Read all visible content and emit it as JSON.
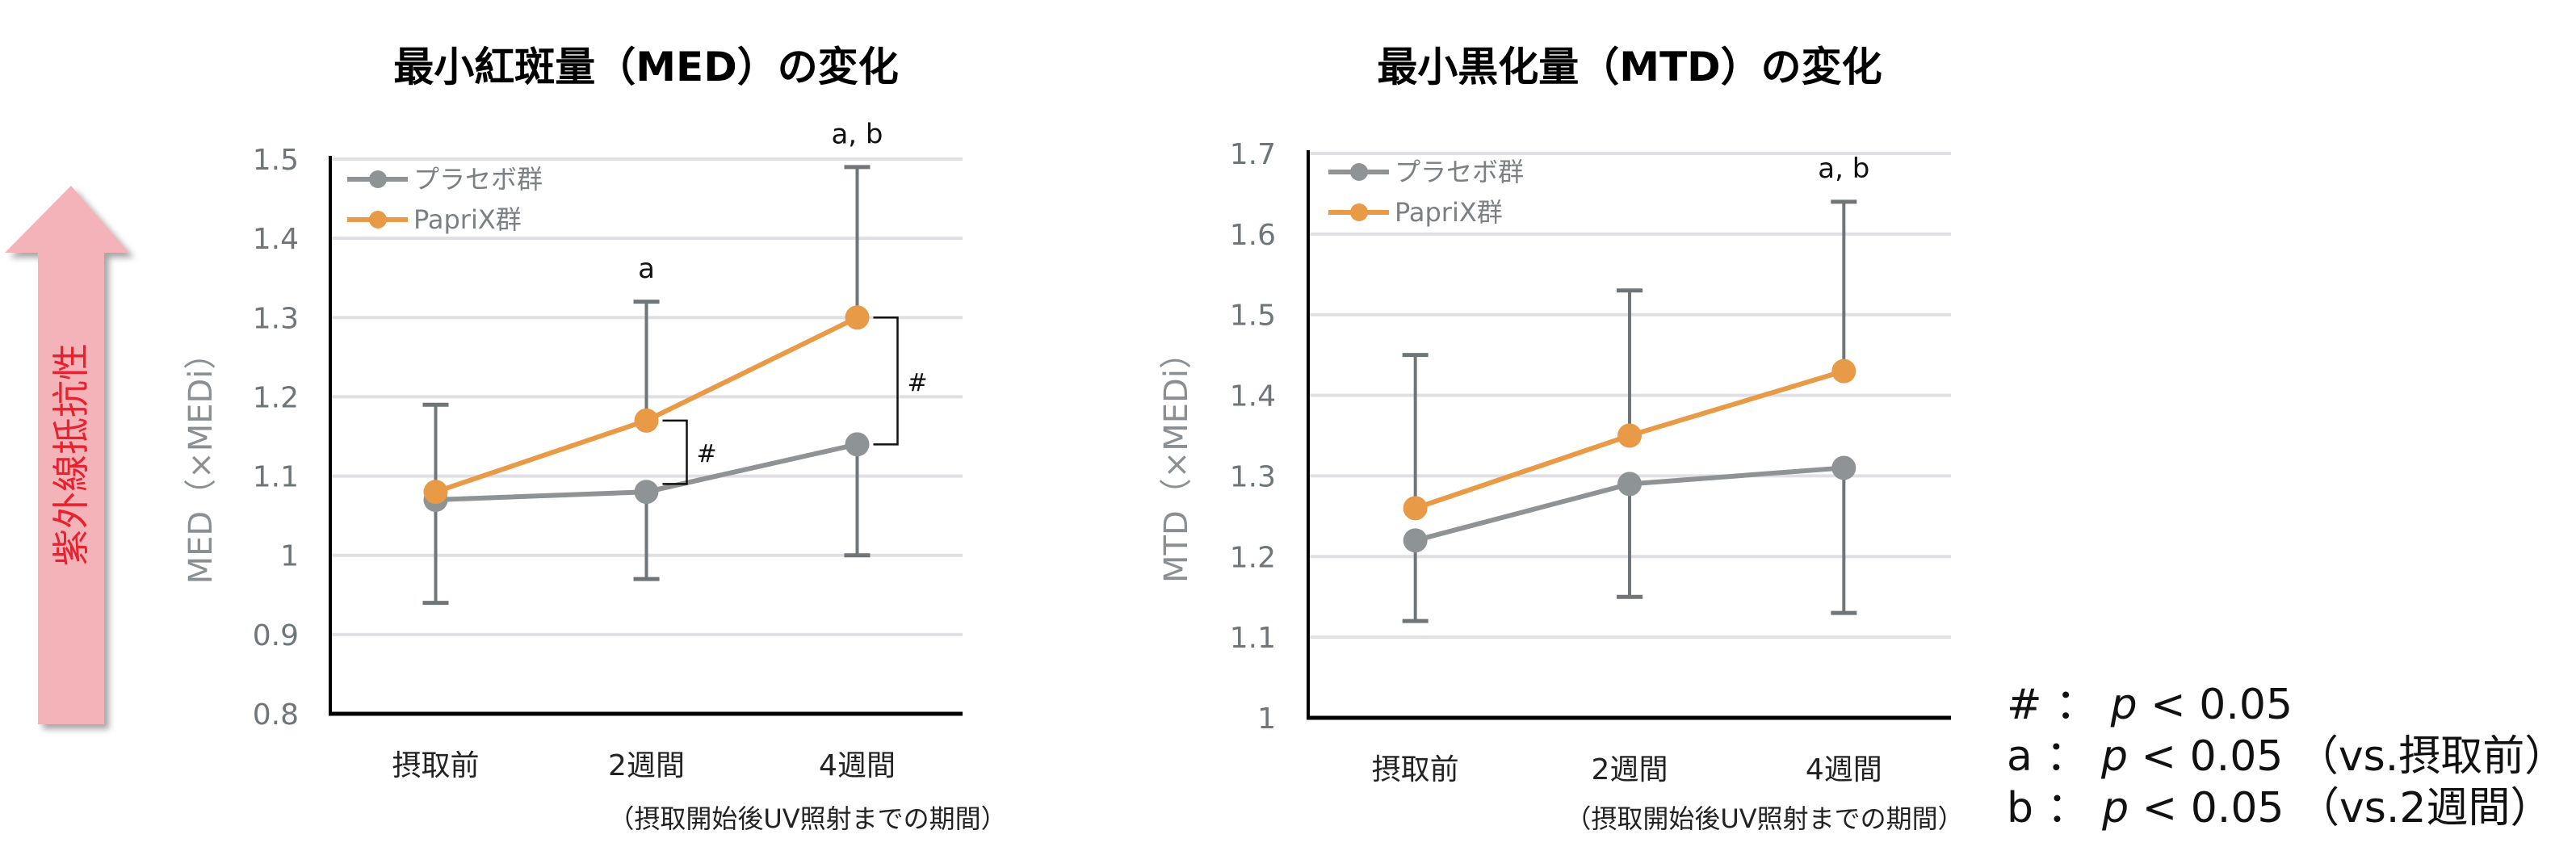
{
  "side_label": "紫外線抵抗性",
  "colors": {
    "placebo": "#8e9396",
    "paprix": "#e99a46",
    "errorbar": "#6f7679",
    "grid": "#e0e0e4",
    "arrow": "#f4b3b9",
    "arrow_text": "#e8212f"
  },
  "chart_data": [
    {
      "type": "line",
      "title": "最小紅斑量（MED）の変化",
      "ylabel": "MED（×MEDi）",
      "xlabel": "（摂取開始後UV照射までの期間）",
      "categories": [
        "摂取前",
        "2週間",
        "4週間"
      ],
      "ylim": [
        0.8,
        1.5
      ],
      "yticks": [
        0.8,
        0.9,
        1,
        1.1,
        1.2,
        1.3,
        1.4,
        1.5
      ],
      "ytick_labels": [
        "0.8",
        "0.9",
        "1",
        "1.1",
        "1.2",
        "1.3",
        "1.4",
        "1.5"
      ],
      "grid": true,
      "legend_position": "top-left",
      "series": [
        {
          "name": "プラセボ群",
          "values": [
            1.07,
            1.08,
            1.14
          ],
          "error_lower": [
            0.94,
            0.97,
            1.0
          ]
        },
        {
          "name": "PapriX群",
          "values": [
            1.08,
            1.17,
            1.3
          ],
          "error_upper": [
            1.19,
            1.32,
            1.49
          ]
        }
      ],
      "annotations": [
        {
          "category_index": 1,
          "text": "a",
          "at": 1.35
        },
        {
          "category_index": 2,
          "text": "a, b",
          "at": 1.52
        }
      ],
      "significance_brackets": [
        {
          "category_index": 1,
          "from": 1.09,
          "to": 1.17,
          "text": "#"
        },
        {
          "category_index": 2,
          "from": 1.14,
          "to": 1.3,
          "text": "#"
        }
      ]
    },
    {
      "type": "line",
      "title": "最小黒化量（MTD）の変化",
      "ylabel": "MTD（×MEDi）",
      "xlabel": "（摂取開始後UV照射までの期間）",
      "categories": [
        "摂取前",
        "2週間",
        "4週間"
      ],
      "ylim": [
        1.0,
        1.7
      ],
      "yticks": [
        1.0,
        1.1,
        1.2,
        1.3,
        1.4,
        1.5,
        1.6,
        1.7
      ],
      "ytick_labels": [
        "1",
        "1.1",
        "1.2",
        "1.3",
        "1.4",
        "1.5",
        "1.6",
        "1.7"
      ],
      "grid": true,
      "legend_position": "top-left",
      "series": [
        {
          "name": "プラセボ群",
          "values": [
            1.22,
            1.29,
            1.31
          ],
          "error_lower": [
            1.12,
            1.15,
            1.13
          ]
        },
        {
          "name": "PapriX群",
          "values": [
            1.26,
            1.35,
            1.43
          ],
          "error_upper": [
            1.45,
            1.53,
            1.64
          ]
        }
      ],
      "annotations": [
        {
          "category_index": 2,
          "text": "a, b",
          "at": 1.67
        }
      ],
      "significance_brackets": []
    }
  ],
  "key": [
    {
      "symbol": "#",
      "sep": "：",
      "p": "p",
      "text": " < 0.05",
      "note": ""
    },
    {
      "symbol": "a",
      "sep": "：",
      "p": "p",
      "text": " < 0.05",
      "note": "（vs.摂取前）"
    },
    {
      "symbol": "b",
      "sep": "：",
      "p": "p",
      "text": " < 0.05",
      "note": "（vs.2週間）"
    }
  ]
}
